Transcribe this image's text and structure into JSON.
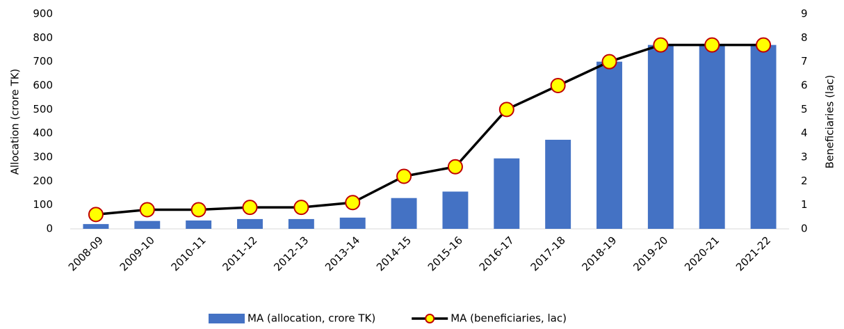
{
  "chart_data": {
    "type": "bar",
    "categories": [
      "2008-09",
      "2009-10",
      "2010-11",
      "2011-12",
      "2012-13",
      "2013-14",
      "2014-15",
      "2015-16",
      "2016-17",
      "2017-18",
      "2018-19",
      "2019-20",
      "2020-21",
      "2021-22"
    ],
    "series": [
      {
        "name": "MA (allocation, crore TK)",
        "type": "bar",
        "color": "#4472c4",
        "values": [
          20,
          33,
          35,
          41,
          41,
          47,
          129,
          156,
          295,
          373,
          700,
          770,
          770,
          770
        ]
      },
      {
        "name": "MA (beneficiaries, lac)",
        "type": "line",
        "axis": "y2",
        "color": "#000000",
        "marker_color": "#ffff00",
        "marker_edge": "#c00000",
        "values": [
          0.6,
          0.8,
          0.8,
          0.9,
          0.9,
          1.1,
          2.2,
          2.6,
          5.0,
          6.0,
          7.0,
          7.7,
          7.7,
          7.7
        ]
      }
    ],
    "ylabel": "Allocation (crore TK)",
    "y2label": "Beneficiaries (lac)",
    "ylim": [
      0,
      900
    ],
    "yticks": [
      0,
      100,
      200,
      300,
      400,
      500,
      600,
      700,
      800,
      900
    ],
    "y2lim": [
      0,
      9
    ],
    "y2ticks": [
      0,
      1,
      2,
      3,
      4,
      5,
      6,
      7,
      8,
      9
    ],
    "grid": false,
    "legend": "bottom"
  }
}
